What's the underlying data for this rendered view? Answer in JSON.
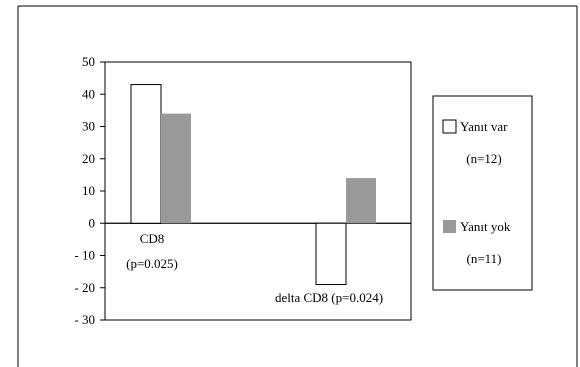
{
  "chart_data": {
    "type": "bar",
    "categories": [
      "CD8",
      "delta CD8"
    ],
    "category_labels": [
      [
        "CD8",
        "(p=0.025)"
      ],
      [
        "delta CD8 (p=0.024)"
      ]
    ],
    "series": [
      {
        "name": "Yanıt var",
        "n_label": "(n=12)",
        "values": [
          43,
          -19
        ],
        "fill": "#ffffff"
      },
      {
        "name": "Yanıt yok",
        "n_label": "(n=11)",
        "values": [
          34,
          14
        ],
        "fill": "#999999"
      }
    ],
    "ylim": [
      -30,
      50
    ],
    "yticks": [
      50,
      40,
      30,
      20,
      10,
      0,
      -10,
      -20,
      -30
    ],
    "ytick_labels": [
      "50",
      "40",
      "30",
      "20",
      "10",
      "0",
      "- 10",
      "- 20",
      "- 30"
    ],
    "legend_position": "right",
    "grid": false
  }
}
